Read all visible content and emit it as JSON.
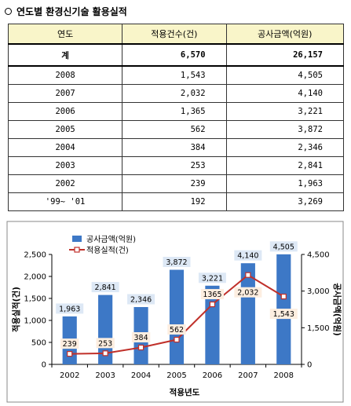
{
  "heading": "연도별 환경신기술 활용실적",
  "table": {
    "headers": [
      "연도",
      "적용건수(건)",
      "공사금액(억원)"
    ],
    "total": {
      "label": "계",
      "count": "6,570",
      "amount": "26,157"
    },
    "rows": [
      {
        "year": "2008",
        "count": "1,543",
        "amount": "4,505"
      },
      {
        "year": "2007",
        "count": "2,032",
        "amount": "4,140"
      },
      {
        "year": "2006",
        "count": "1,365",
        "amount": "3,221"
      },
      {
        "year": "2005",
        "count": "562",
        "amount": "3,872"
      },
      {
        "year": "2004",
        "count": "384",
        "amount": "2,346"
      },
      {
        "year": "2003",
        "count": "253",
        "amount": "2,841"
      },
      {
        "year": "2002",
        "count": "239",
        "amount": "1,963"
      },
      {
        "year": "'99~ '01",
        "count": "192",
        "amount": "3,269"
      }
    ]
  },
  "chart_data": {
    "type": "bar",
    "categories": [
      "2002",
      "2003",
      "2004",
      "2005",
      "2006",
      "2007",
      "2008"
    ],
    "series": [
      {
        "name": "공사금액(억원)",
        "type": "bar",
        "axis": "right",
        "values": [
          1963,
          2841,
          2346,
          3872,
          3221,
          4140,
          4505
        ],
        "labels": [
          "1,963",
          "2,841",
          "2,346",
          "3,872",
          "3,221",
          "4,140",
          "4,505"
        ]
      },
      {
        "name": "적용실적(건)",
        "type": "line",
        "axis": "left",
        "values": [
          239,
          253,
          384,
          562,
          1365,
          2032,
          1543
        ],
        "labels": [
          "239",
          "253",
          "384",
          "562",
          "1365",
          "2,032",
          "1,543"
        ]
      }
    ],
    "xlabel": "적용년도",
    "ylabel": "적용실적(건)",
    "y2label": "공사금액(억원)",
    "ylim": [
      0,
      2500
    ],
    "y2lim": [
      0,
      4500
    ],
    "yticks": [
      "0",
      "500",
      "1,000",
      "1,500",
      "2,000",
      "2,500"
    ],
    "y2ticks": [
      "0",
      "1,500",
      "3,000",
      "4,500"
    ],
    "legend_position": "top",
    "colors": {
      "bar": "#3d78c6",
      "line": "#c0302a",
      "marker_fill": "#ffffff",
      "bar_label_bg": "#dde8f5",
      "line_label_bg": "#fdeee0"
    }
  }
}
